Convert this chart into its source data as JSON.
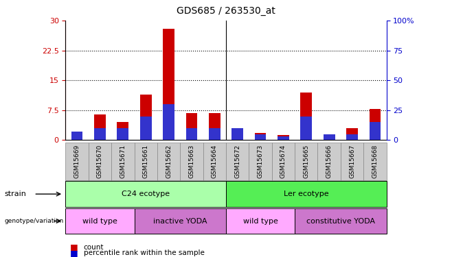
{
  "title": "GDS685 / 263530_at",
  "samples": [
    "GSM15669",
    "GSM15670",
    "GSM15671",
    "GSM15661",
    "GSM15662",
    "GSM15663",
    "GSM15664",
    "GSM15672",
    "GSM15673",
    "GSM15674",
    "GSM15665",
    "GSM15666",
    "GSM15667",
    "GSM15668"
  ],
  "counts": [
    0.8,
    6.5,
    4.5,
    11.5,
    28.0,
    6.8,
    6.8,
    3.0,
    1.8,
    1.2,
    12.0,
    1.5,
    3.0,
    7.8
  ],
  "percentile": [
    7.0,
    10.0,
    10.0,
    20.0,
    30.0,
    10.0,
    10.0,
    10.0,
    5.0,
    3.0,
    20.0,
    5.0,
    5.0,
    15.0
  ],
  "bar_color": "#cc0000",
  "blue_color": "#3333cc",
  "left_yticks": [
    0,
    7.5,
    15,
    22.5,
    30
  ],
  "right_yticks": [
    0,
    25,
    50,
    75,
    100
  ],
  "ylim_left": [
    0,
    30
  ],
  "ylim_right": [
    0,
    100
  ],
  "left_ylabel_color": "#cc0000",
  "right_ylabel_color": "#0000cc",
  "strain_row": [
    {
      "label": "C24 ecotype",
      "start": 0,
      "end": 6,
      "color": "#aaffaa"
    },
    {
      "label": "Ler ecotype",
      "start": 7,
      "end": 13,
      "color": "#55ee55"
    }
  ],
  "genotype_row": [
    {
      "label": "wild type",
      "start": 0,
      "end": 2,
      "color": "#ffaaff"
    },
    {
      "label": "inactive YODA",
      "start": 3,
      "end": 6,
      "color": "#cc77cc"
    },
    {
      "label": "wild type",
      "start": 7,
      "end": 9,
      "color": "#ffaaff"
    },
    {
      "label": "constitutive YODA",
      "start": 10,
      "end": 13,
      "color": "#cc77cc"
    }
  ],
  "legend_count_color": "#cc0000",
  "legend_pct_color": "#0000cc",
  "legend_count_label": "count",
  "legend_pct_label": "percentile rank within the sample",
  "background_color": "#ffffff",
  "bar_width": 0.5,
  "title_fontsize": 10,
  "axis_fontsize": 8
}
